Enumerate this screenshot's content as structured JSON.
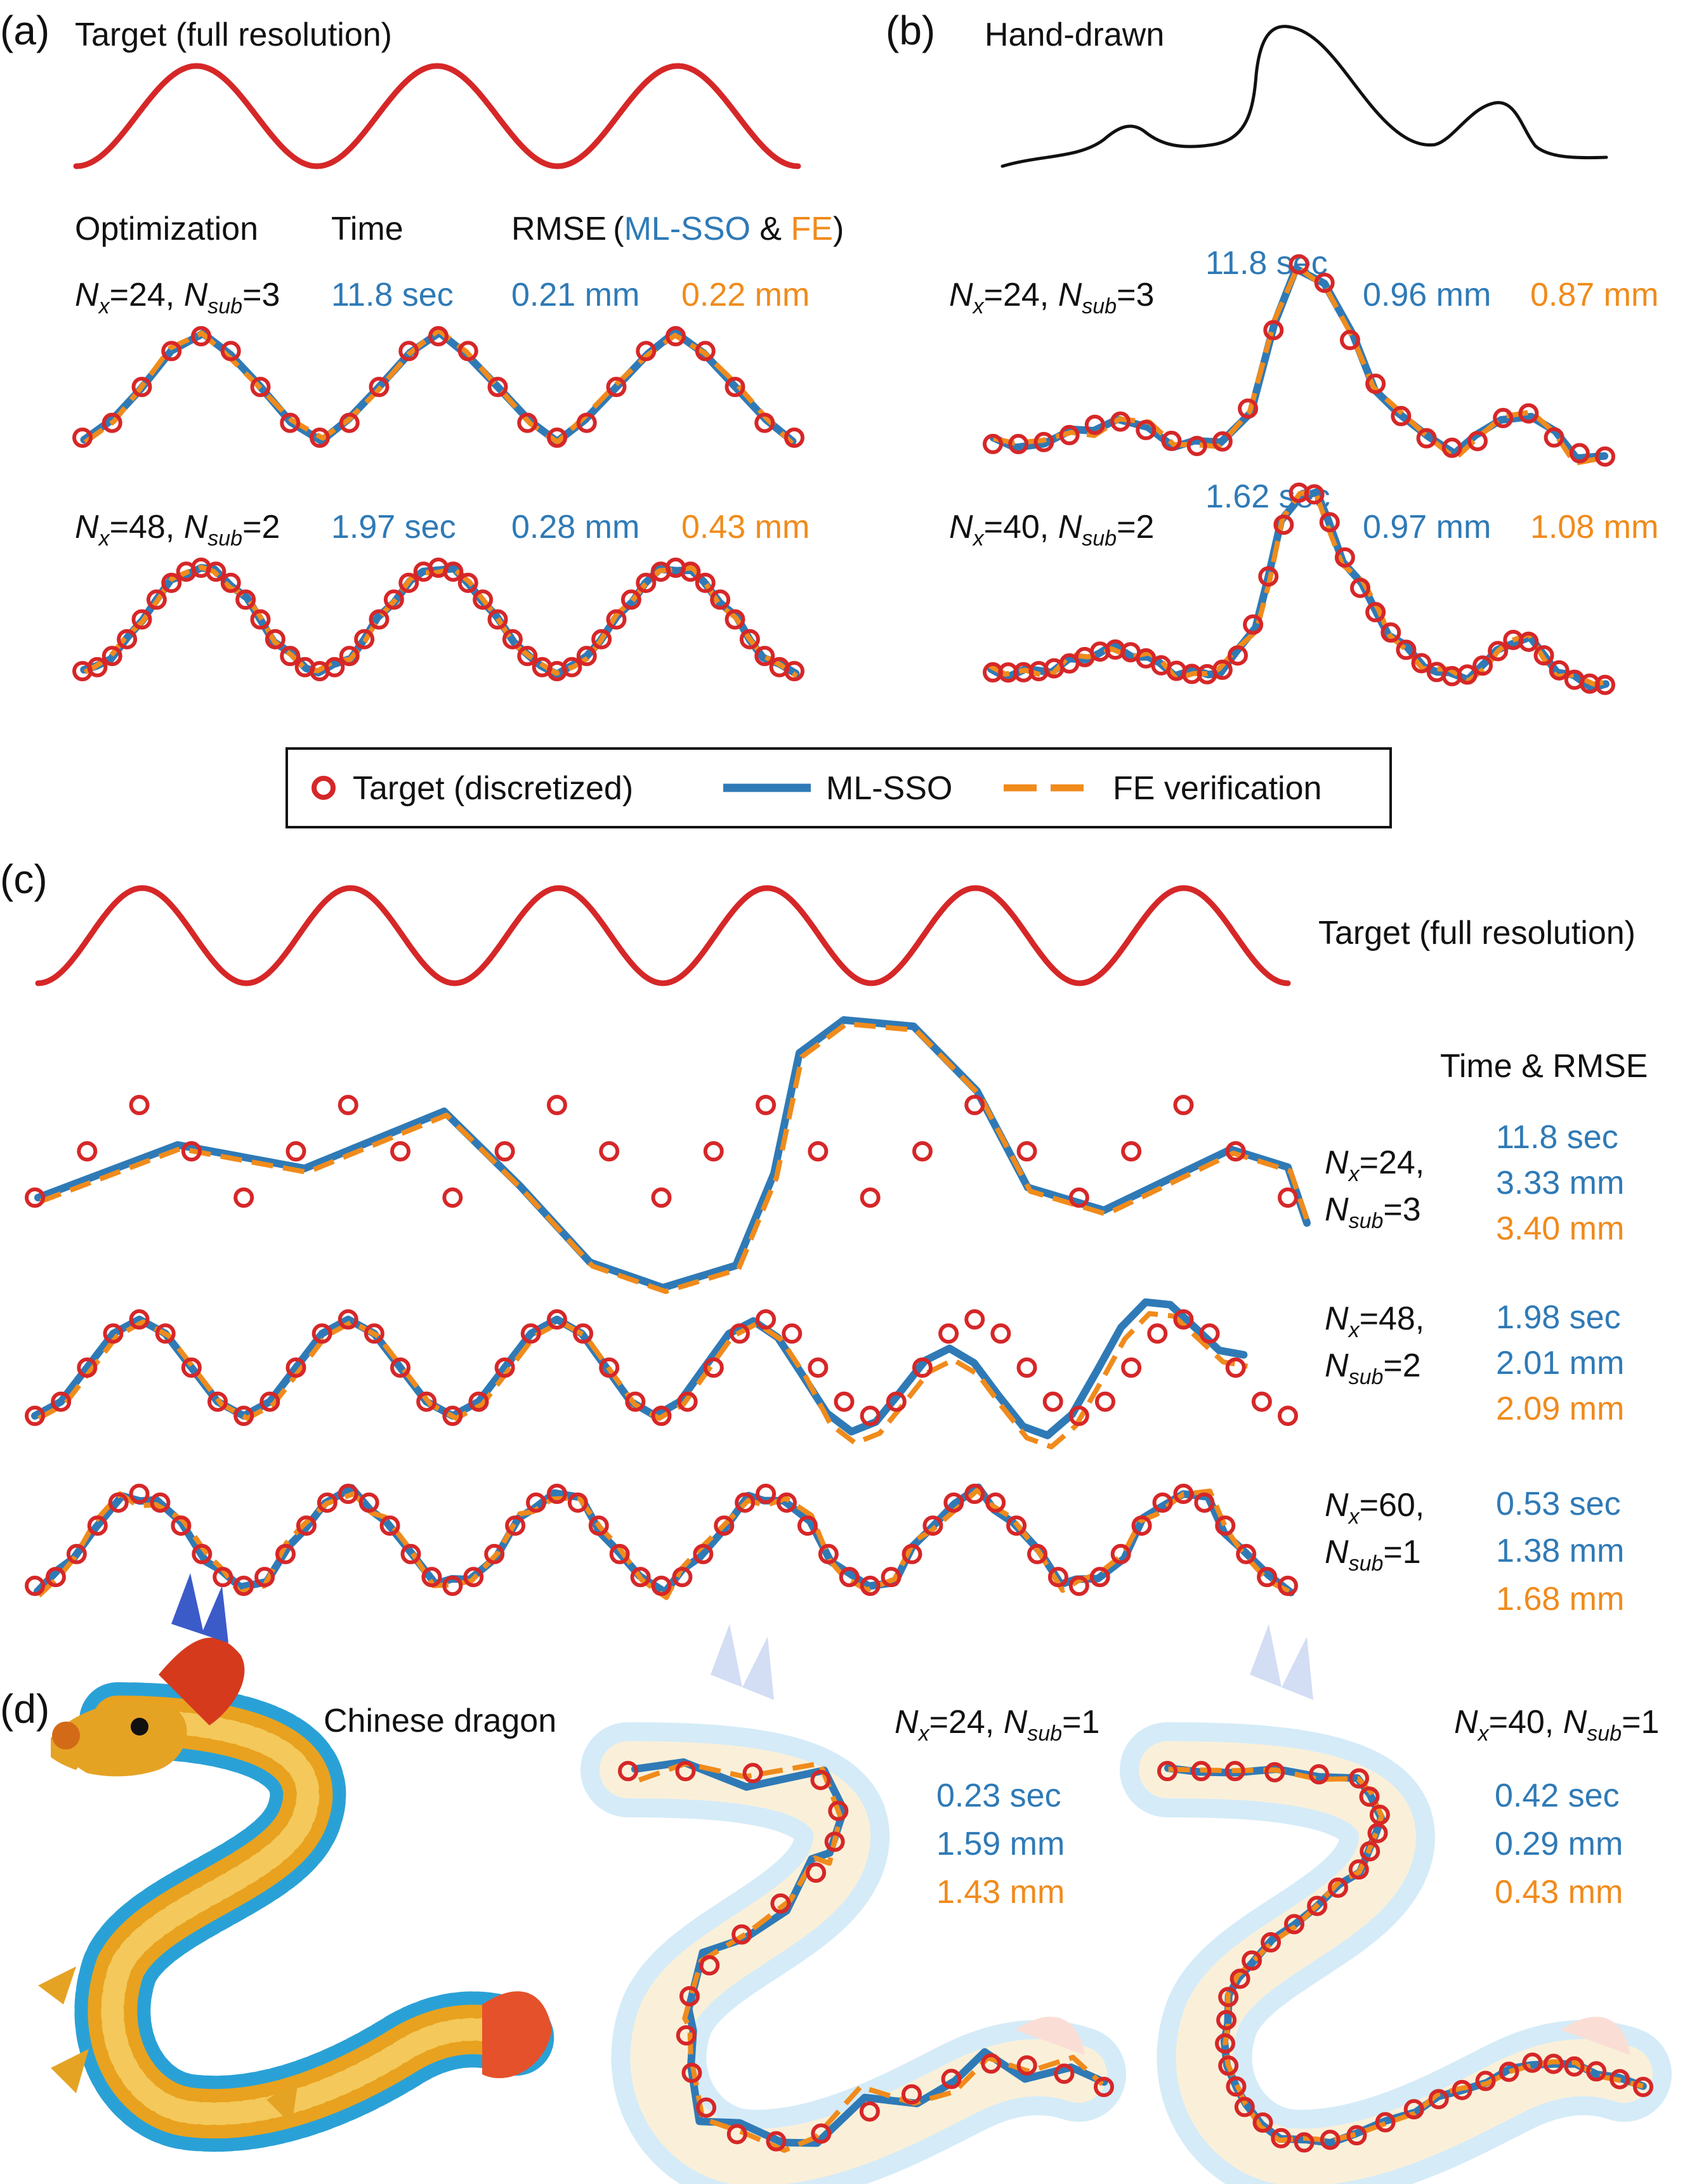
{
  "colors": {
    "target": "#d62728",
    "ml_sso": "#2f7ab6",
    "fe": "#f08b1c",
    "text": "#111111"
  },
  "legend": {
    "target": "Target (discretized)",
    "ml_sso": "ML-SSO",
    "fe": "FE verification"
  },
  "panel_a": {
    "letter": "(a)",
    "title": "Target (full resolution)",
    "header": {
      "optimization": "Optimization",
      "time": "Time",
      "rmse": "RMSE",
      "open": "(",
      "ml": "ML-SSO",
      "amp": " & ",
      "fe": "FE",
      "close": ")"
    },
    "rows": [
      {
        "nx": "24",
        "nsub": "3",
        "time": "11.8 sec",
        "rmse_ml": "0.21 mm",
        "rmse_fe": "0.22 mm"
      },
      {
        "nx": "48",
        "nsub": "2",
        "time": "1.97 sec",
        "rmse_ml": "0.28 mm",
        "rmse_fe": "0.43 mm"
      }
    ]
  },
  "panel_b": {
    "letter": "(b)",
    "title": "Hand-drawn",
    "rows": [
      {
        "nx": "24",
        "nsub": "3",
        "time": "11.8 sec",
        "rmse_ml": "0.96 mm",
        "rmse_fe": "0.87 mm"
      },
      {
        "nx": "40",
        "nsub": "2",
        "time": "1.62 sec",
        "rmse_ml": "0.97 mm",
        "rmse_fe": "1.08 mm"
      }
    ]
  },
  "panel_c": {
    "letter": "(c)",
    "title": "Target (full resolution)",
    "header": "Time & RMSE",
    "rows": [
      {
        "nx": "24",
        "nsub": "3",
        "time": "11.8 sec",
        "rmse_ml": "3.33 mm",
        "rmse_fe": "3.40 mm"
      },
      {
        "nx": "48",
        "nsub": "2",
        "time": "1.98 sec",
        "rmse_ml": "2.01 mm",
        "rmse_fe": "2.09 mm"
      },
      {
        "nx": "60",
        "nsub": "1",
        "time": "0.53 sec",
        "rmse_ml": "1.38 mm",
        "rmse_fe": "1.68 mm"
      }
    ]
  },
  "panel_d": {
    "letter": "(d)",
    "title": "Chinese dragon",
    "rows": [
      {
        "nx": "24",
        "nsub": "1",
        "time": "0.23 sec",
        "rmse_ml": "1.59 mm",
        "rmse_fe": "1.43 mm"
      },
      {
        "nx": "40",
        "nsub": "1",
        "time": "0.42 sec",
        "rmse_ml": "0.29 mm",
        "rmse_fe": "0.43 mm"
      }
    ]
  },
  "notation": {
    "n": "N",
    "sub_x": "x",
    "sub_sub": "sub",
    "eq": "=",
    "comma": ", "
  }
}
